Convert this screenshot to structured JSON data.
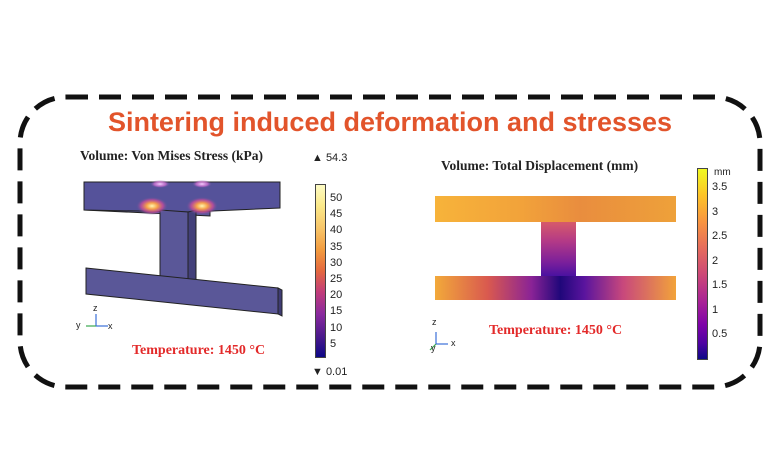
{
  "title": "Sintering induced deformation and stresses",
  "colors": {
    "title": "#e2542b",
    "frame": "#111111",
    "temperature": "#e32a2a",
    "stress_body": "#5b5899"
  },
  "left_plot": {
    "title": "Volume: Von Mises Stress (kPa)",
    "max_label": "▲ 54.3",
    "min_label": "▼ 0.01",
    "ticks": [
      "50",
      "45",
      "40",
      "35",
      "30",
      "25",
      "20",
      "15",
      "10",
      "5"
    ],
    "temperature": "Temperature: 1450 °C",
    "axes": {
      "z": "z",
      "y": "y",
      "x": "x"
    },
    "colormap": "plasma-inverted"
  },
  "right_plot": {
    "title": "Volume: Total Displacement (mm)",
    "unit": "mm",
    "ticks": [
      "3.5",
      "3",
      "2.5",
      "2",
      "1.5",
      "1",
      "0.5"
    ],
    "temperature": "Temperature: 1450 °C",
    "axes": {
      "z": "z",
      "y": "y",
      "x": "x"
    },
    "colormap": "plasma"
  }
}
